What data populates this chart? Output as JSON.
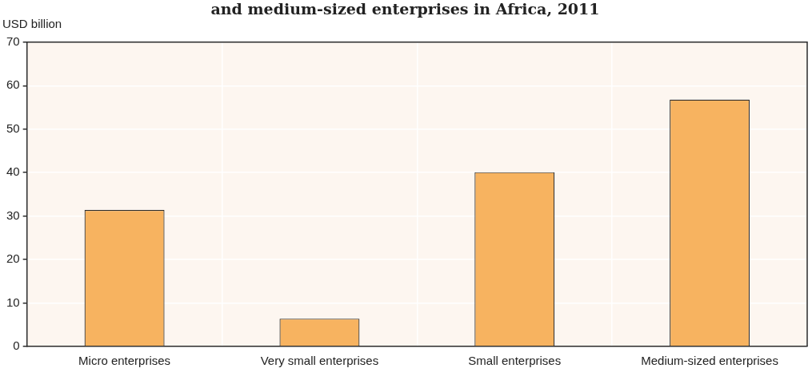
{
  "chart_data": {
    "type": "bar",
    "title": "and medium-sized enterprises in Africa, 2011",
    "ylabel": "USD billion",
    "categories": [
      "Micro enterprises",
      "Very small enterprises",
      "Small enterprises",
      "Medium-sized enterprises"
    ],
    "values": [
      31.4,
      6.4,
      40.1,
      56.8
    ],
    "color": "#f7b360",
    "ylim": [
      0,
      70
    ],
    "yticks": [
      0,
      10,
      20,
      30,
      40,
      50,
      60,
      70
    ],
    "grid": true,
    "legend": false
  }
}
